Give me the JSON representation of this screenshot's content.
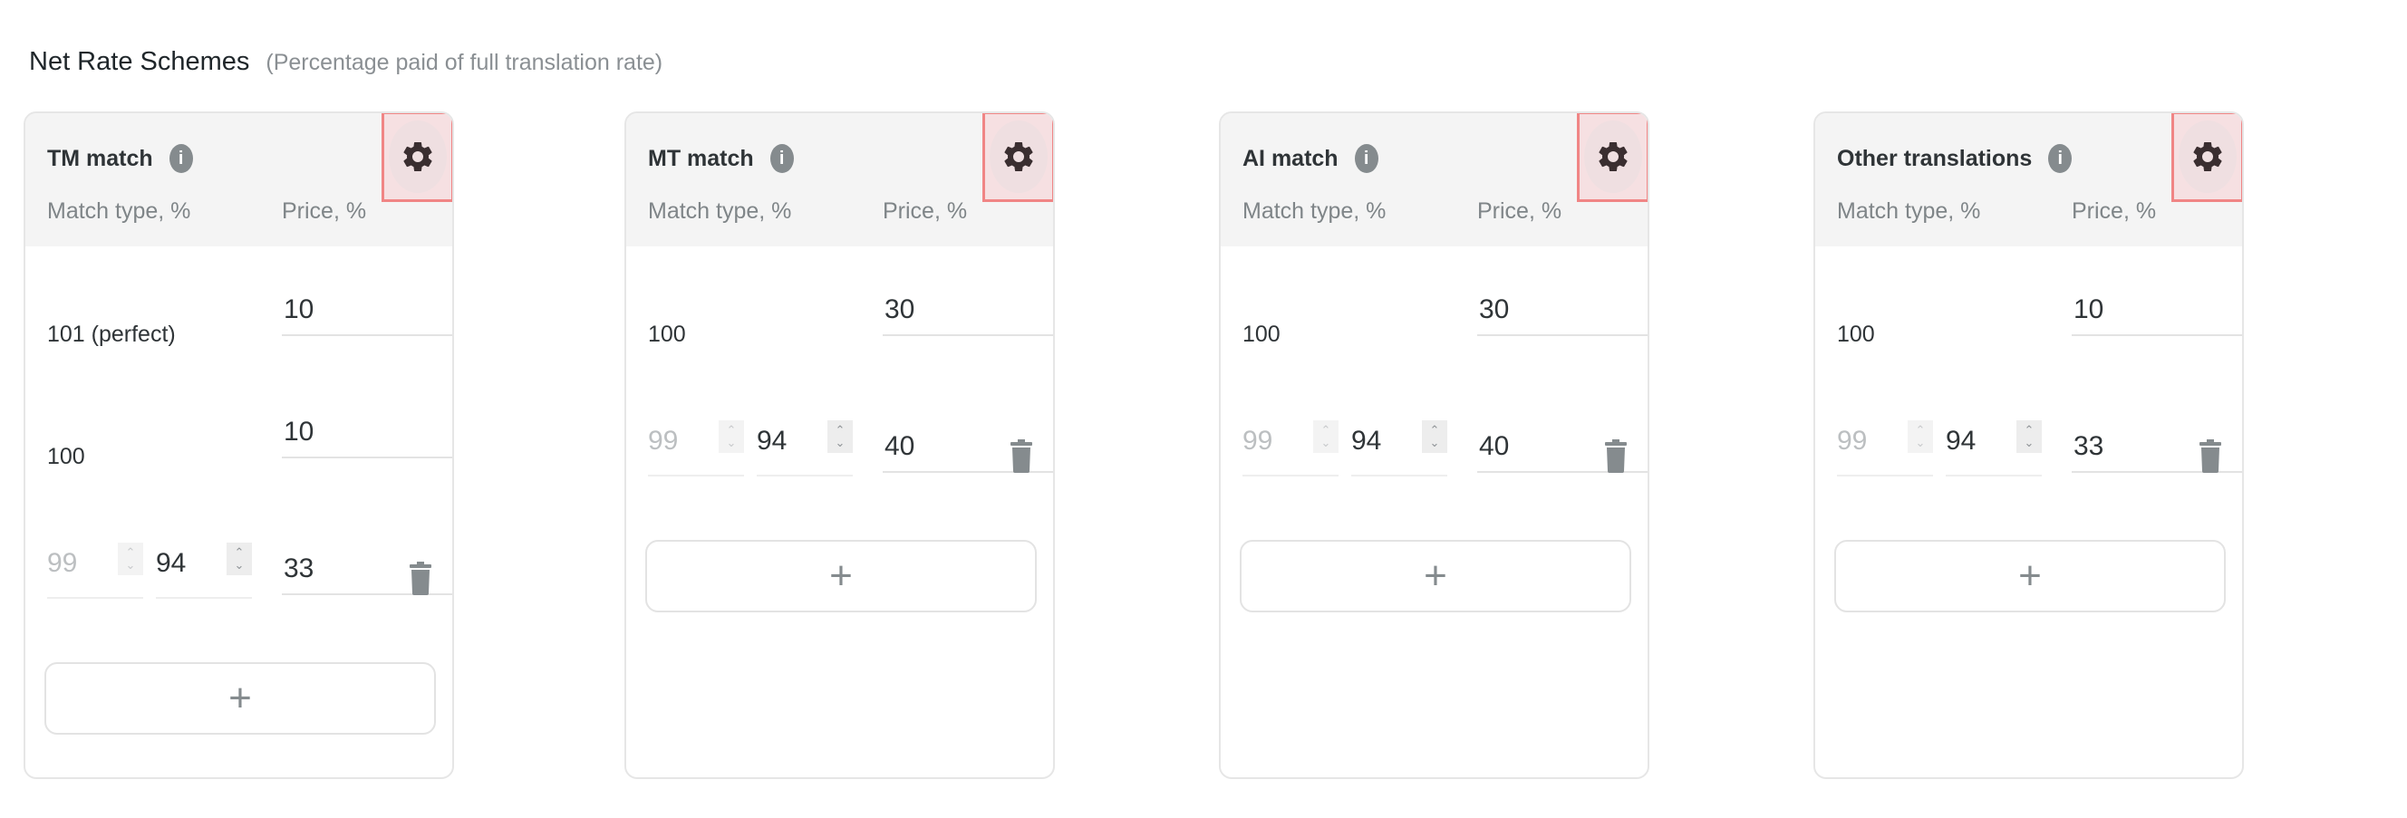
{
  "heading": {
    "title": "Net Rate Schemes",
    "subtitle": "(Percentage paid of full translation rate)"
  },
  "columns": {
    "match": "Match type, %",
    "price": "Price, %"
  },
  "colors": {
    "highlight_border": "#f08585",
    "icon_gray": "#858b8e"
  },
  "cards": [
    {
      "title": "TM match",
      "rows": [
        {
          "label": "101 (perfect)",
          "price": "10"
        },
        {
          "label": "100",
          "price": "10"
        }
      ],
      "range": {
        "from": "99",
        "to": "94",
        "price": "33"
      }
    },
    {
      "title": "MT match",
      "rows": [
        {
          "label": "100",
          "price": "30"
        }
      ],
      "range": {
        "from": "99",
        "to": "94",
        "price": "40"
      }
    },
    {
      "title": "AI match",
      "rows": [
        {
          "label": "100",
          "price": "30"
        }
      ],
      "range": {
        "from": "99",
        "to": "94",
        "price": "40"
      }
    },
    {
      "title": "Other translations",
      "rows": [
        {
          "label": "100",
          "price": "10"
        }
      ],
      "range": {
        "from": "99",
        "to": "94",
        "price": "33"
      }
    }
  ],
  "icons": {
    "info": "info-icon",
    "settings": "gear-icon",
    "delete": "trash-icon",
    "add": "plus-icon",
    "spinner": "chevron-up-down-icon"
  }
}
